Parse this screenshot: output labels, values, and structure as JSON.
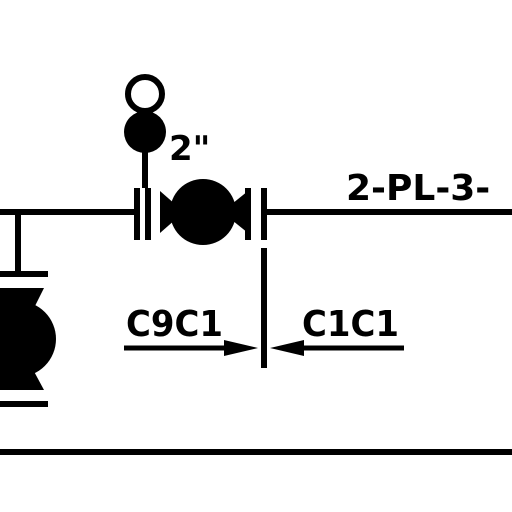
{
  "valve_size_label": "2\"",
  "line_number_label": "2-PL-3-",
  "spec_break": {
    "left_spec": "C9C1",
    "right_spec": "C1C1"
  },
  "colors": {
    "background": "#ffffff",
    "ink": "#000000"
  }
}
